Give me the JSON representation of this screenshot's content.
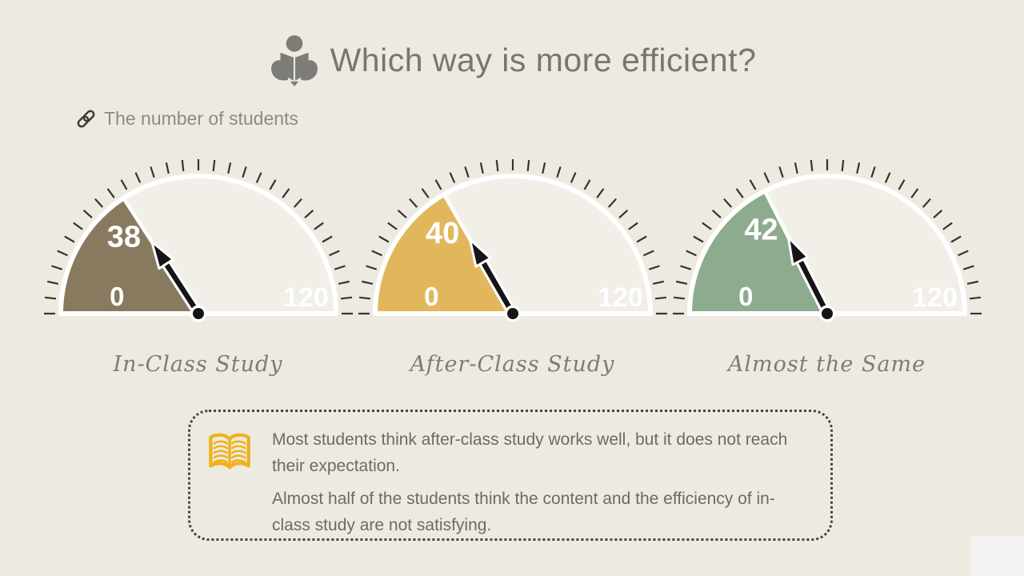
{
  "slide": {
    "background": "#edeae2",
    "corner_block_color": "#f4f3f1",
    "icons": {
      "title": "person-reading-icon",
      "subtitle": "link-icon",
      "note": "open-book-icon"
    },
    "book_icon_color": "#f0b21c",
    "person_icon_color": "#7d7c76"
  },
  "chart_data": {
    "type": "gauge",
    "title": "Which way is more efficient?",
    "subtitle": "The number of students",
    "min": 0,
    "max": 120,
    "tick_step_degrees": 6,
    "dial_fill": "#f2efe8",
    "dial_border": "#ffffff",
    "needle_color": "#151515",
    "gauges": [
      {
        "label": "In-Class Study",
        "value": 38,
        "color": "#877a5f"
      },
      {
        "label": "After-Class Study",
        "value": 40,
        "color": "#e2b75c"
      },
      {
        "label": "Almost the Same",
        "value": 42,
        "color": "#8dab8d"
      }
    ]
  },
  "note": {
    "lines": [
      "Most students think after-class study works well, but it does not reach their expectation.",
      "Almost half of the students think the content and the efficiency of in-class study are not satisfying."
    ]
  }
}
